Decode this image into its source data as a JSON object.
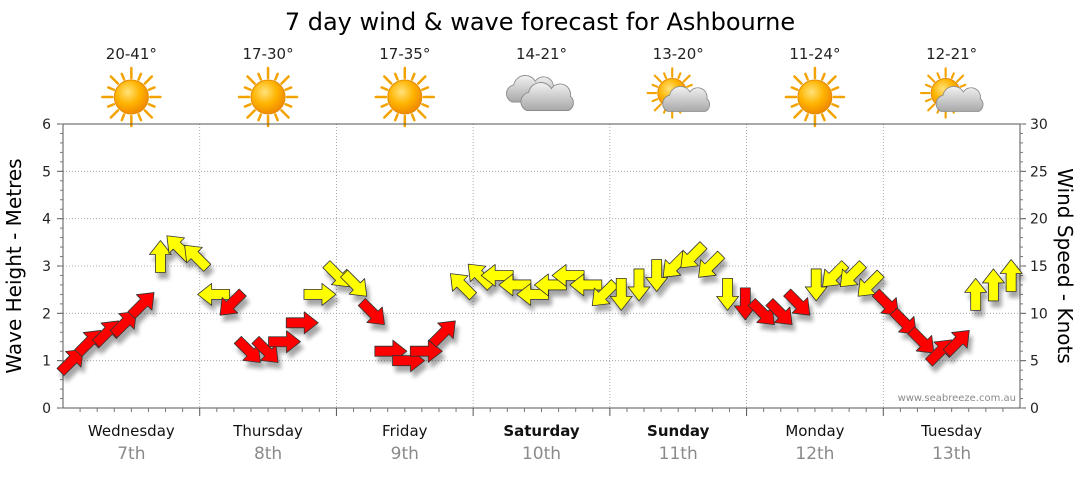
{
  "chart_data": {
    "type": "line",
    "title": "7 day wind & wave forecast for Ashbourne",
    "ylabel_left": "Wave Height - Metres",
    "ylabel_right": "Wind Speed - Knots",
    "ylim_left": [
      0,
      6
    ],
    "ylim_right": [
      0,
      30
    ],
    "yticks_left": [
      "0",
      "1",
      "2",
      "3",
      "4",
      "5",
      "6"
    ],
    "yticks_right": [
      "0",
      "5",
      "10",
      "15",
      "20",
      "25",
      "30"
    ],
    "credit": "www.seabreeze.com.au",
    "grid": true,
    "days": [
      {
        "name": "Wednesday",
        "date": "7th",
        "bold": false,
        "temp": "20-41°",
        "weather_icon": "sun-icon"
      },
      {
        "name": "Thursday",
        "date": "8th",
        "bold": false,
        "temp": "17-30°",
        "weather_icon": "sun-icon"
      },
      {
        "name": "Friday",
        "date": "9th",
        "bold": false,
        "temp": "17-35°",
        "weather_icon": "sun-icon"
      },
      {
        "name": "Saturday",
        "date": "10th",
        "bold": true,
        "temp": "14-21°",
        "weather_icon": "cloud-icon"
      },
      {
        "name": "Sunday",
        "date": "11th",
        "bold": true,
        "temp": "13-20°",
        "weather_icon": "partly-cloudy-icon"
      },
      {
        "name": "Monday",
        "date": "12th",
        "bold": false,
        "temp": "11-24°",
        "weather_icon": "sun-icon"
      },
      {
        "name": "Tuesday",
        "date": "13th",
        "bold": false,
        "temp": "12-21°",
        "weather_icon": "partly-cloudy-icon"
      }
    ],
    "colors": {
      "wind_moderate": "#ff0000",
      "wind_fresh": "#ffff00",
      "outline": "#333333",
      "grid": "#999999"
    },
    "series": [
      {
        "name": "Wind Speed",
        "unit": "knots",
        "step_hours": 3,
        "values": [
          5,
          7,
          8,
          9,
          11,
          16,
          17,
          16,
          12,
          11,
          6,
          6,
          7,
          9,
          12,
          14,
          13,
          10,
          6,
          5,
          6,
          8,
          13,
          14,
          14,
          13,
          12,
          13,
          14,
          13,
          12,
          12,
          13,
          14,
          15,
          16,
          15,
          12,
          11,
          10,
          10,
          11,
          13,
          14,
          14,
          13,
          11,
          9,
          7,
          6,
          7,
          12,
          13,
          14
        ],
        "direction_deg": [
          225,
          225,
          225,
          225,
          225,
          180,
          135,
          135,
          90,
          45,
          315,
          315,
          270,
          270,
          270,
          315,
          315,
          315,
          270,
          270,
          270,
          225,
          135,
          135,
          90,
          90,
          90,
          90,
          90,
          90,
          45,
          0,
          0,
          0,
          45,
          45,
          45,
          0,
          0,
          315,
          315,
          315,
          0,
          45,
          45,
          45,
          315,
          315,
          315,
          225,
          225,
          180,
          180,
          180
        ]
      }
    ]
  }
}
